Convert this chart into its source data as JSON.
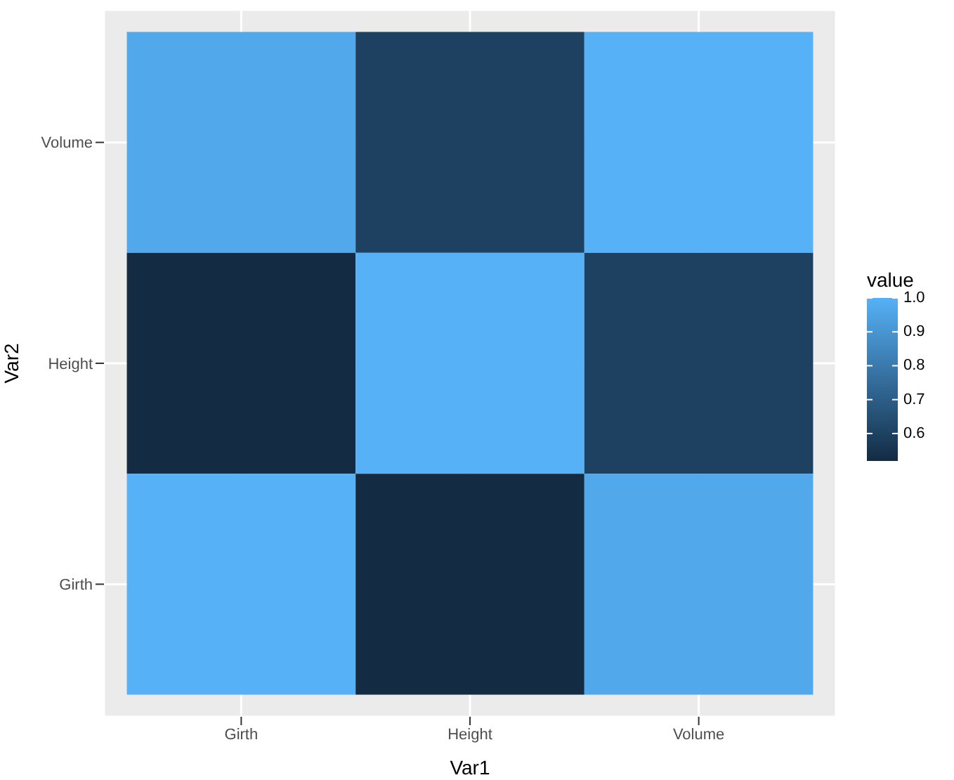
{
  "chart_data": {
    "type": "heatmap",
    "xlabel": "Var1",
    "ylabel": "Var2",
    "clabel": "value",
    "categories": [
      "Girth",
      "Height",
      "Volume"
    ],
    "y_categories": [
      "Volume",
      "Height",
      "Girth"
    ],
    "cells": [
      [
        0.967,
        0.598,
        1
      ],
      [
        0.519,
        1,
        0.598
      ],
      [
        1,
        0.519,
        0.967
      ]
    ],
    "clim": [
      0.519,
      1
    ],
    "cticks": [
      0.6,
      0.7,
      0.8,
      0.9,
      {
        "value": 1,
        "label": "1.0"
      }
    ],
    "grid": true
  }
}
